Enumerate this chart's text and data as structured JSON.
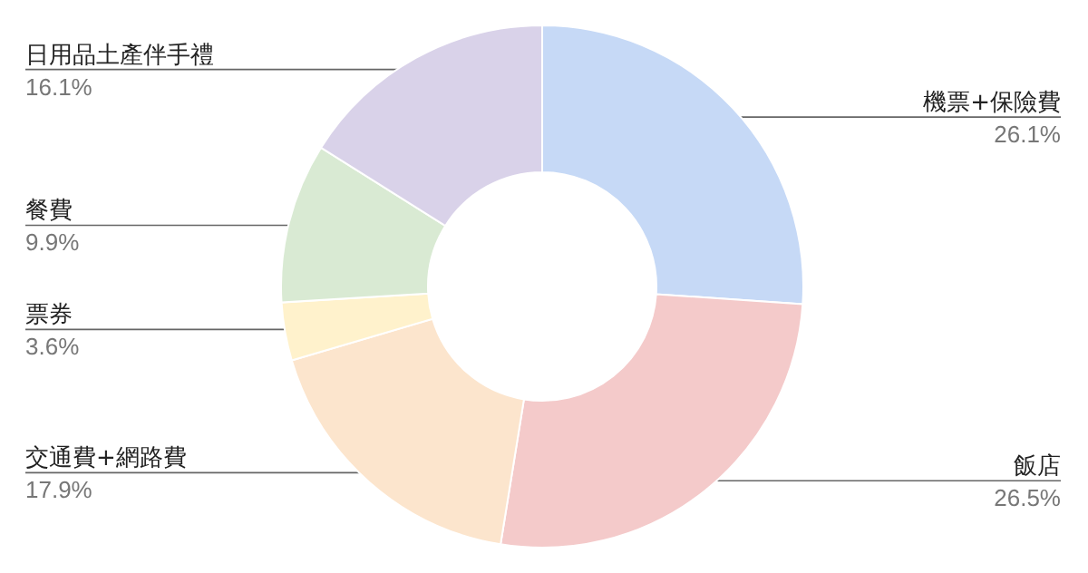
{
  "chart_data": {
    "type": "donut",
    "categories": [
      "機票+保險費",
      "飯店",
      "交通費+網路費",
      "票券",
      "餐費",
      "日用品土產伴手禮"
    ],
    "values": [
      26.1,
      26.5,
      17.9,
      3.6,
      9.9,
      16.1
    ],
    "colors": [
      "#c6d9f6",
      "#f4caca",
      "#fce5cd",
      "#fff2cc",
      "#d9ead3",
      "#d9d2e9"
    ],
    "value_labels": [
      "26.1%",
      "26.5%",
      "17.9%",
      "3.6%",
      "9.9%",
      "16.1%"
    ]
  }
}
